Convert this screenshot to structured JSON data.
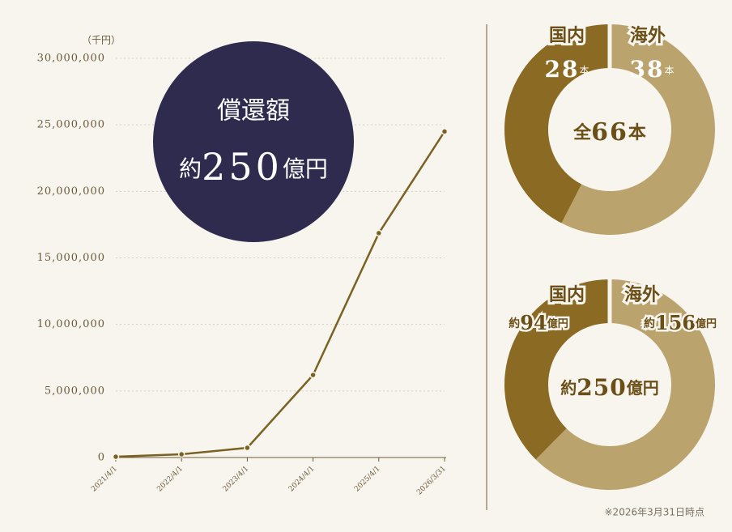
{
  "chart_data": [
    {
      "type": "line",
      "y_unit": "（千円）",
      "x": [
        "2021/4/1",
        "2022/4/1",
        "2023/4/1",
        "2024/4/1",
        "2025/4/1",
        "2026/3/31"
      ],
      "values": [
        60000,
        240000,
        730000,
        6200000,
        16860000,
        24500000
      ],
      "color": "#7a6222",
      "ylim": [
        0,
        30000000
      ],
      "yticks": [
        0,
        {
          "value": 5000000,
          "label": "5,000,000"
        },
        {
          "value": 10000000,
          "label": "10,000,000"
        },
        {
          "value": 15000000,
          "label": "15,000,000"
        },
        {
          "value": 20000000,
          "label": "20,000,000"
        },
        {
          "value": 25000000,
          "label": "25,000,000"
        },
        {
          "value": 30000000,
          "label": "30,000,000"
        }
      ],
      "grid": true,
      "annotation": {
        "title": "償還額",
        "prefix": "約",
        "value": 250,
        "unit": "億円"
      }
    },
    {
      "type": "pie",
      "categories": [
        "国内",
        "海外"
      ],
      "values": [
        28,
        38
      ],
      "colors": [
        "#8b6b23",
        "#bba36d"
      ],
      "unit": "本",
      "total_label": {
        "prefix": "全",
        "value": 66,
        "unit": "本"
      }
    },
    {
      "type": "pie",
      "categories": [
        "国内",
        "海外"
      ],
      "values": [
        94,
        156
      ],
      "colors": [
        "#8b6b23",
        "#bba36d"
      ],
      "prefix": "約",
      "unit": "億円",
      "total_label": {
        "prefix": "約",
        "value": 250,
        "unit": "億円"
      }
    }
  ],
  "footnote": "※2026年3月31日時点"
}
